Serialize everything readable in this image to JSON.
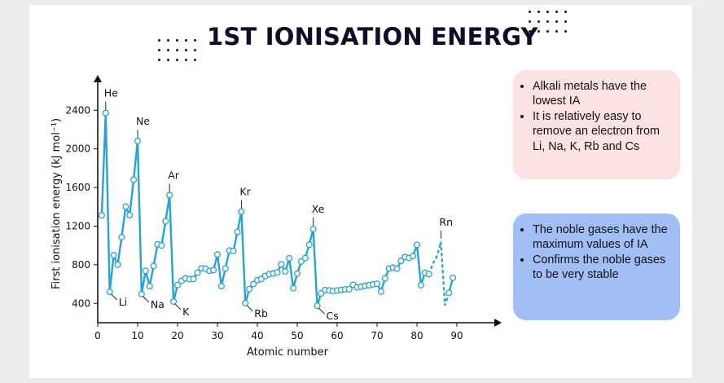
{
  "slide": {
    "title": "1ST IONISATION ENERGY"
  },
  "notes": {
    "alkali": [
      "Alkali metals have the lowest IA",
      "It is relatively easy to remove an electron from Li, Na, K, Rb and Cs"
    ],
    "noble": [
      "The noble gases have the maximum values of IA",
      "Confirms the noble gases to be very stable"
    ]
  },
  "colors": {
    "line": "#27a2d6",
    "note_pink": "#fde2e5",
    "note_blue": "#a1bef5"
  },
  "chart_data": {
    "type": "line",
    "xlabel": "Atomic number",
    "ylabel": "First ionisation energy (kJ mol⁻¹)",
    "xlim": [
      0,
      100
    ],
    "ylim": [
      200,
      2700
    ],
    "xticks": [
      0,
      10,
      20,
      30,
      40,
      50,
      60,
      70,
      80,
      90
    ],
    "yticks": [
      400,
      800,
      1200,
      1600,
      2000,
      2400
    ],
    "dashed_from_x": 83,
    "dashed_to_x": 88,
    "x": [
      1,
      2,
      3,
      4,
      5,
      6,
      7,
      8,
      9,
      10,
      11,
      12,
      13,
      14,
      15,
      16,
      17,
      18,
      19,
      20,
      21,
      22,
      23,
      24,
      25,
      26,
      27,
      28,
      29,
      30,
      31,
      32,
      33,
      34,
      35,
      36,
      37,
      38,
      39,
      40,
      41,
      42,
      43,
      44,
      45,
      46,
      47,
      48,
      49,
      50,
      51,
      52,
      53,
      54,
      55,
      56,
      57,
      58,
      59,
      60,
      61,
      62,
      63,
      64,
      65,
      66,
      67,
      68,
      69,
      70,
      71,
      72,
      73,
      74,
      75,
      76,
      77,
      78,
      79,
      80,
      81,
      82,
      83,
      84,
      85,
      86,
      87,
      88,
      89
    ],
    "y": [
      1312,
      2372,
      520,
      899,
      801,
      1086,
      1402,
      1314,
      1681,
      2081,
      496,
      738,
      578,
      787,
      1012,
      1000,
      1251,
      1521,
      419,
      590,
      633,
      659,
      651,
      653,
      717,
      762,
      760,
      737,
      745,
      906,
      579,
      762,
      947,
      941,
      1140,
      1351,
      403,
      549,
      600,
      640,
      652,
      684,
      702,
      710,
      720,
      804,
      731,
      868,
      558,
      709,
      834,
      869,
      1008,
      1170,
      376,
      503,
      538,
      534,
      528,
      533,
      540,
      545,
      547,
      593,
      566,
      573,
      581,
      589,
      597,
      603,
      523,
      659,
      761,
      770,
      760,
      840,
      880,
      870,
      890,
      1007,
      589,
      716,
      703,
      812,
      890,
      1037,
      380,
      509,
      665
    ],
    "annotations": [
      {
        "label": "He",
        "x": 2,
        "side": "top"
      },
      {
        "label": "Ne",
        "x": 10,
        "side": "top"
      },
      {
        "label": "Ar",
        "x": 18,
        "side": "top"
      },
      {
        "label": "Kr",
        "x": 36,
        "side": "top"
      },
      {
        "label": "Xe",
        "x": 54,
        "side": "top"
      },
      {
        "label": "Rn",
        "x": 86,
        "side": "top"
      },
      {
        "label": "Li",
        "x": 3,
        "side": "bottom"
      },
      {
        "label": "Na",
        "x": 11,
        "side": "bottom"
      },
      {
        "label": "K",
        "x": 19,
        "side": "bottom"
      },
      {
        "label": "Rb",
        "x": 37,
        "side": "bottom"
      },
      {
        "label": "Cs",
        "x": 55,
        "side": "bottom"
      }
    ]
  }
}
